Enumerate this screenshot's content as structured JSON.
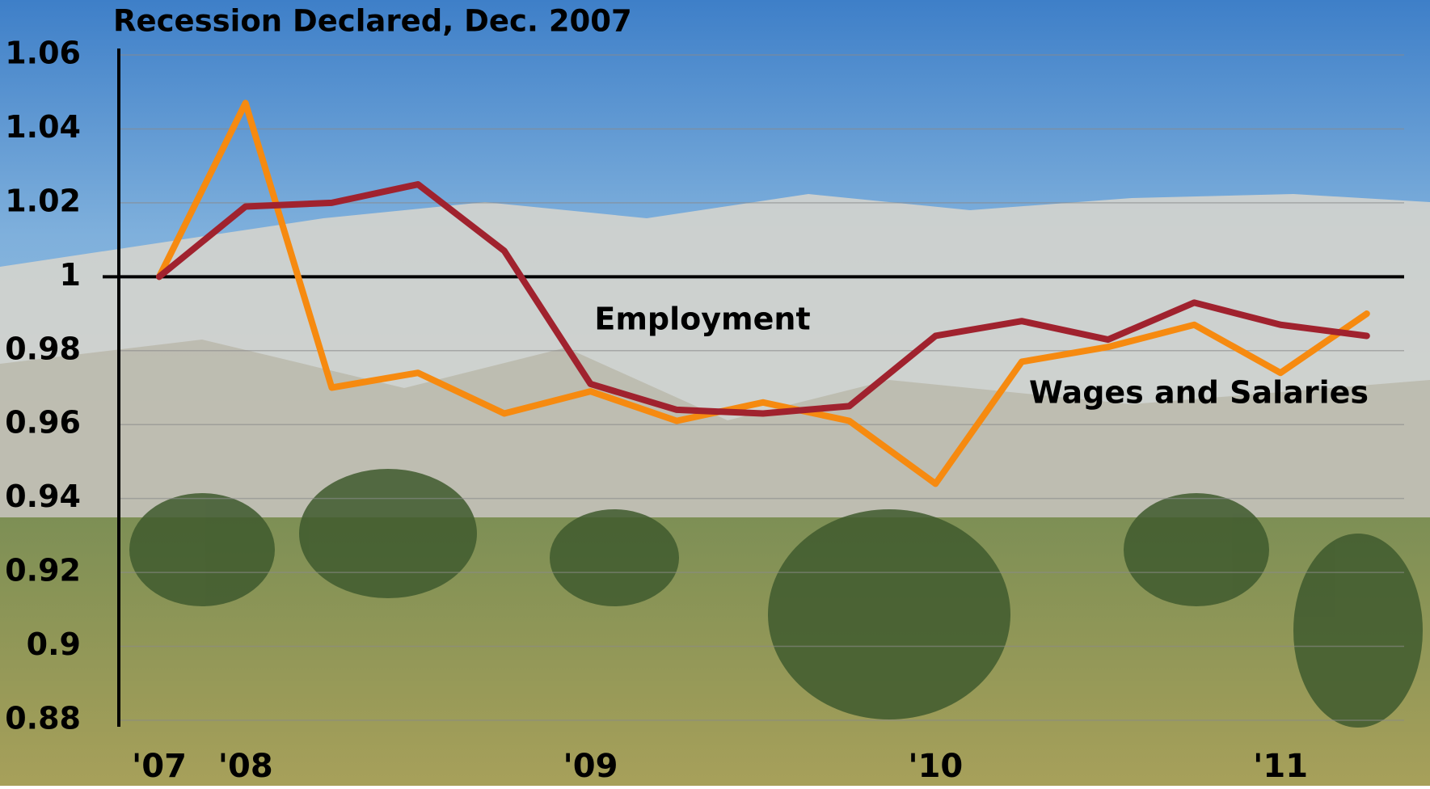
{
  "chart_data": {
    "type": "line",
    "title": "Recession Declared, Dec. 2007",
    "categories": [
      "'07",
      "'08",
      null,
      null,
      null,
      "'09",
      null,
      null,
      null,
      "'10",
      null,
      null,
      null,
      "'11",
      null
    ],
    "series": [
      {
        "name": "Employment",
        "color": "#a0222e",
        "values": [
          1.0,
          1.019,
          1.02,
          1.025,
          1.007,
          0.971,
          0.964,
          0.963,
          0.965,
          0.984,
          0.988,
          0.983,
          0.993,
          0.987,
          0.984
        ]
      },
      {
        "name": "Wages and Salaries",
        "color": "#f68a10",
        "values": [
          1.0,
          1.047,
          0.97,
          0.974,
          0.963,
          0.969,
          0.961,
          0.966,
          0.961,
          0.944,
          0.977,
          0.981,
          0.987,
          0.974,
          0.99
        ]
      }
    ],
    "ylim": [
      0.88,
      1.06
    ],
    "yticks": [
      0.88,
      0.9,
      0.92,
      0.94,
      0.96,
      0.98,
      1,
      1.02,
      1.04,
      1.06
    ],
    "grid": true
  }
}
